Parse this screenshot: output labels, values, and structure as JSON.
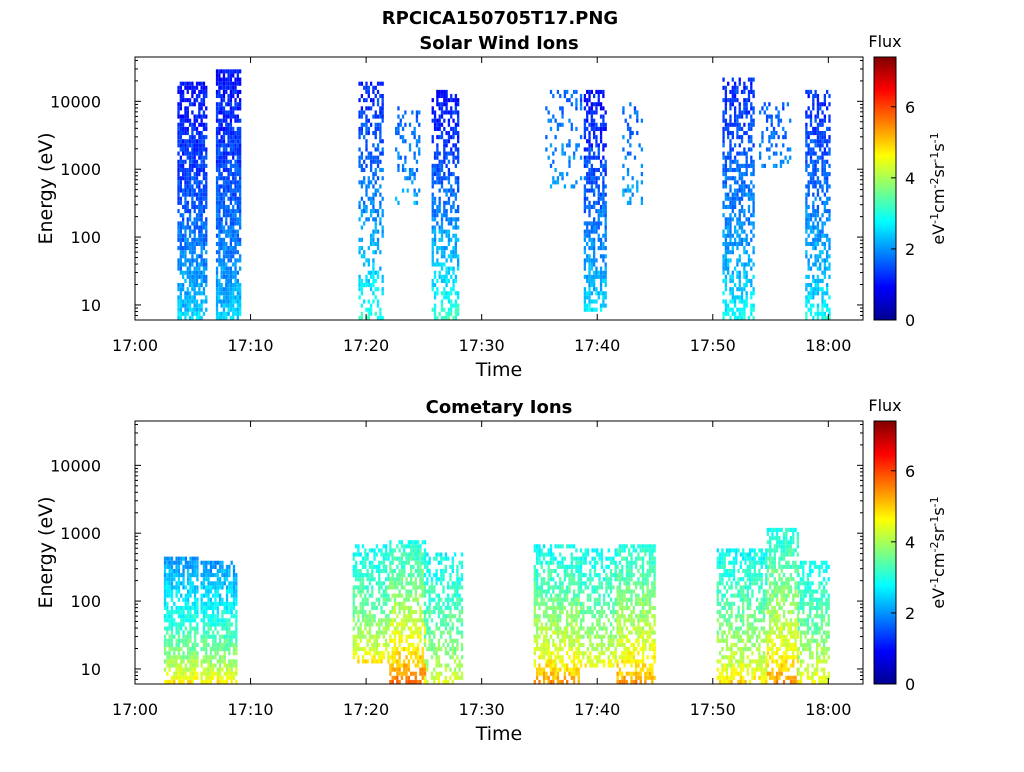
{
  "figure": {
    "title": "RPCICA150705T17.PNG"
  },
  "chart_data": [
    {
      "type": "heatmap",
      "title": "Solar Wind Ions",
      "xlabel": "Time",
      "ylabel": "Energy (eV)",
      "x_ticks": [
        "17:00",
        "17:10",
        "17:20",
        "17:30",
        "17:40",
        "17:50",
        "18:00"
      ],
      "xlim": [
        "17:00",
        "18:03"
      ],
      "y_scale": "log",
      "y_ticks": [
        "10",
        "100",
        "1000",
        "10000"
      ],
      "ylim": [
        6,
        45000
      ],
      "colorbar": {
        "title": "Flux",
        "label": "eV-1cm-2sr-1s-1",
        "ticks": [
          "0",
          "2",
          "4",
          "6"
        ],
        "range": [
          0,
          7.4
        ],
        "colormap": "jet"
      },
      "clusters": [
        {
          "t_start": "17:03:40",
          "t_end": "17:06:10",
          "e_max": 20000,
          "e_min": 6,
          "flux_low_energy": 2.6,
          "flux_high_energy": 1.0,
          "density": 0.75
        },
        {
          "t_start": "17:07:00",
          "t_end": "17:09:10",
          "e_max": 28000,
          "e_min": 6,
          "flux_low_energy": 2.6,
          "flux_high_energy": 1.0,
          "density": 0.8
        },
        {
          "t_start": "17:19:20",
          "t_end": "17:21:20",
          "e_max": 20000,
          "e_min": 6,
          "flux_low_energy": 3.2,
          "flux_high_energy": 1.2,
          "density": 0.45
        },
        {
          "t_start": "17:22:30",
          "t_end": "17:24:40",
          "e_max": 9000,
          "e_min": 300,
          "flux_low_energy": 2.2,
          "flux_high_energy": 1.6,
          "density": 0.25
        },
        {
          "t_start": "17:25:40",
          "t_end": "17:28:00",
          "e_max": 14000,
          "e_min": 6,
          "flux_low_energy": 3.4,
          "flux_high_energy": 1.0,
          "density": 0.55
        },
        {
          "t_start": "17:35:30",
          "t_end": "17:38:40",
          "e_max": 14000,
          "e_min": 500,
          "flux_low_energy": 2.2,
          "flux_high_energy": 1.6,
          "density": 0.2
        },
        {
          "t_start": "17:38:50",
          "t_end": "17:40:40",
          "e_max": 15000,
          "e_min": 8,
          "flux_low_energy": 2.8,
          "flux_high_energy": 1.0,
          "density": 0.6
        },
        {
          "t_start": "17:42:10",
          "t_end": "17:43:50",
          "e_max": 10000,
          "e_min": 300,
          "flux_low_energy": 2.2,
          "flux_high_energy": 1.6,
          "density": 0.25
        },
        {
          "t_start": "17:50:50",
          "t_end": "17:53:30",
          "e_max": 22000,
          "e_min": 6,
          "flux_low_energy": 3.0,
          "flux_high_energy": 1.2,
          "density": 0.55
        },
        {
          "t_start": "17:54:00",
          "t_end": "17:56:40",
          "e_max": 9500,
          "e_min": 1000,
          "flux_low_energy": 2.0,
          "flux_high_energy": 1.6,
          "density": 0.25
        },
        {
          "t_start": "17:58:00",
          "t_end": "18:00:10",
          "e_max": 14000,
          "e_min": 6,
          "flux_low_energy": 3.0,
          "flux_high_energy": 1.2,
          "density": 0.55
        }
      ]
    },
    {
      "type": "heatmap",
      "title": "Cometary Ions",
      "xlabel": "Time",
      "ylabel": "Energy (eV)",
      "x_ticks": [
        "17:00",
        "17:10",
        "17:20",
        "17:30",
        "17:40",
        "17:50",
        "18:00"
      ],
      "xlim": [
        "17:00",
        "18:03"
      ],
      "y_scale": "log",
      "y_ticks": [
        "10",
        "100",
        "1000",
        "10000"
      ],
      "ylim": [
        6,
        45000
      ],
      "colorbar": {
        "title": "Flux",
        "label": "eV-1cm-2sr-1s-1",
        "ticks": [
          "0",
          "2",
          "4",
          "6"
        ],
        "range": [
          0,
          7.4
        ],
        "colormap": "jet"
      },
      "clusters": [
        {
          "t_start": "17:02:30",
          "t_end": "17:05:30",
          "e_max": 450,
          "e_min": 6,
          "flux_low_energy": 5.0,
          "flux_high_energy": 2.0,
          "density": 0.75
        },
        {
          "t_start": "17:05:40",
          "t_end": "17:08:50",
          "e_max": 400,
          "e_min": 6,
          "flux_low_energy": 5.0,
          "flux_high_energy": 2.0,
          "density": 0.75
        },
        {
          "t_start": "17:18:50",
          "t_end": "17:22:00",
          "e_max": 650,
          "e_min": 12,
          "flux_low_energy": 4.9,
          "flux_high_energy": 2.8,
          "density": 0.6
        },
        {
          "t_start": "17:22:00",
          "t_end": "17:25:00",
          "e_max": 800,
          "e_min": 6,
          "flux_low_energy": 6.0,
          "flux_high_energy": 3.0,
          "density": 0.65
        },
        {
          "t_start": "17:25:00",
          "t_end": "17:28:20",
          "e_max": 500,
          "e_min": 6,
          "flux_low_energy": 4.5,
          "flux_high_energy": 2.8,
          "density": 0.55
        },
        {
          "t_start": "17:34:30",
          "t_end": "17:38:30",
          "e_max": 700,
          "e_min": 6,
          "flux_low_energy": 5.6,
          "flux_high_energy": 2.8,
          "density": 0.65
        },
        {
          "t_start": "17:38:30",
          "t_end": "17:41:40",
          "e_max": 600,
          "e_min": 10,
          "flux_low_energy": 4.8,
          "flux_high_energy": 2.8,
          "density": 0.55
        },
        {
          "t_start": "17:41:40",
          "t_end": "17:45:00",
          "e_max": 700,
          "e_min": 6,
          "flux_low_energy": 5.6,
          "flux_high_energy": 3.0,
          "density": 0.65
        },
        {
          "t_start": "17:50:20",
          "t_end": "17:54:40",
          "e_max": 600,
          "e_min": 6,
          "flux_low_energy": 5.0,
          "flux_high_energy": 2.8,
          "density": 0.6
        },
        {
          "t_start": "17:54:40",
          "t_end": "17:57:20",
          "e_max": 1200,
          "e_min": 6,
          "flux_low_energy": 5.6,
          "flux_high_energy": 3.0,
          "density": 0.65
        },
        {
          "t_start": "17:57:20",
          "t_end": "18:00:00",
          "e_max": 400,
          "e_min": 6,
          "flux_low_energy": 4.8,
          "flux_high_energy": 2.8,
          "density": 0.6
        }
      ]
    }
  ]
}
